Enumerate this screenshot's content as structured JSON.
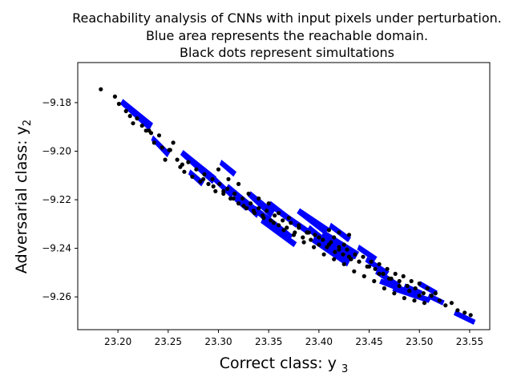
{
  "chart_data": {
    "type": "scatter",
    "title": [
      "Reachability analysis of CNNs with input pixels under perturbation.",
      "Blue area represents the reachable domain.",
      "Black dots represent simultations"
    ],
    "xlabel": "Correct class: y",
    "xlabel_sub": "3",
    "ylabel": "Adversarial class: y",
    "ylabel_sub": "2",
    "xlim": [
      23.16,
      23.57
    ],
    "ylim": [
      -9.2735,
      -9.1635
    ],
    "xticks": [
      "23.20",
      "23.25",
      "23.30",
      "23.35",
      "23.40",
      "23.45",
      "23.50",
      "23.55"
    ],
    "yticks": [
      "-9.18",
      "-9.20",
      "-9.22",
      "-9.24",
      "-9.26"
    ],
    "grid": false,
    "colors": {
      "reachable_domain": "#0000ff",
      "simulations": "#000000"
    },
    "series": [
      {
        "kind": "reachable_domain_polygons",
        "polygons": [
          [
            [
              23.205,
              -9.1785
            ],
            [
              23.235,
              -9.1885
            ],
            [
              23.231,
              -9.1915
            ],
            [
              23.202,
              -9.1805
            ]
          ],
          [
            [
              23.235,
              -9.1935
            ],
            [
              23.252,
              -9.2005
            ],
            [
              23.249,
              -9.2025
            ],
            [
              23.233,
              -9.1955
            ]
          ],
          [
            [
              23.265,
              -9.1995
            ],
            [
              23.298,
              -9.2105
            ],
            [
              23.294,
              -9.2135
            ],
            [
              23.262,
              -9.2015
            ]
          ],
          [
            [
              23.272,
              -9.2075
            ],
            [
              23.286,
              -9.2125
            ],
            [
              23.283,
              -9.2145
            ],
            [
              23.27,
              -9.2095
            ]
          ],
          [
            [
              23.292,
              -9.2085
            ],
            [
              23.315,
              -9.2175
            ],
            [
              23.313,
              -9.2195
            ],
            [
              23.29,
              -9.2105
            ]
          ],
          [
            [
              23.303,
              -9.2035
            ],
            [
              23.318,
              -9.2085
            ],
            [
              23.315,
              -9.2105
            ],
            [
              23.301,
              -9.2055
            ]
          ],
          [
            [
              23.31,
              -9.2135
            ],
            [
              23.342,
              -9.2245
            ],
            [
              23.338,
              -9.2275
            ],
            [
              23.307,
              -9.2155
            ]
          ],
          [
            [
              23.318,
              -9.2185
            ],
            [
              23.33,
              -9.2225
            ],
            [
              23.327,
              -9.2245
            ],
            [
              23.316,
              -9.2205
            ]
          ],
          [
            [
              23.332,
              -9.2165
            ],
            [
              23.356,
              -9.2245
            ],
            [
              23.352,
              -9.2275
            ],
            [
              23.329,
              -9.2185
            ]
          ],
          [
            [
              23.337,
              -9.2225
            ],
            [
              23.374,
              -9.2345
            ],
            [
              23.37,
              -9.2375
            ],
            [
              23.334,
              -9.2245
            ]
          ],
          [
            [
              23.344,
              -9.2275
            ],
            [
              23.378,
              -9.2375
            ],
            [
              23.375,
              -9.2395
            ],
            [
              23.342,
              -9.2295
            ]
          ],
          [
            [
              23.352,
              -9.2205
            ],
            [
              23.38,
              -9.2295
            ],
            [
              23.377,
              -9.2315
            ],
            [
              23.349,
              -9.2225
            ]
          ],
          [
            [
              23.364,
              -9.2245
            ],
            [
              23.392,
              -9.2325
            ],
            [
              23.389,
              -9.2345
            ],
            [
              23.361,
              -9.2265
            ]
          ],
          [
            [
              23.381,
              -9.2235
            ],
            [
              23.41,
              -9.2315
            ],
            [
              23.406,
              -9.2345
            ],
            [
              23.378,
              -9.2255
            ]
          ],
          [
            [
              23.391,
              -9.2305
            ],
            [
              23.418,
              -9.2395
            ],
            [
              23.414,
              -9.2425
            ],
            [
              23.388,
              -9.2325
            ]
          ],
          [
            [
              23.396,
              -9.2345
            ],
            [
              23.433,
              -9.2435
            ],
            [
              23.428,
              -9.2475
            ],
            [
              23.393,
              -9.2375
            ]
          ],
          [
            [
              23.405,
              -9.2325
            ],
            [
              23.44,
              -9.2415
            ],
            [
              23.436,
              -9.2445
            ],
            [
              23.402,
              -9.2355
            ]
          ],
          [
            [
              23.412,
              -9.2295
            ],
            [
              23.432,
              -9.2355
            ],
            [
              23.429,
              -9.2375
            ],
            [
              23.41,
              -9.2315
            ]
          ],
          [
            [
              23.418,
              -9.2365
            ],
            [
              23.438,
              -9.2425
            ],
            [
              23.435,
              -9.2445
            ],
            [
              23.416,
              -9.2385
            ]
          ],
          [
            [
              23.44,
              -9.2385
            ],
            [
              23.458,
              -9.2435
            ],
            [
              23.455,
              -9.2455
            ],
            [
              23.438,
              -9.2405
            ]
          ],
          [
            [
              23.448,
              -9.2435
            ],
            [
              23.47,
              -9.2495
            ],
            [
              23.467,
              -9.2515
            ],
            [
              23.446,
              -9.2455
            ]
          ],
          [
            [
              23.458,
              -9.2485
            ],
            [
              23.481,
              -9.2545
            ],
            [
              23.478,
              -9.2565
            ],
            [
              23.456,
              -9.2505
            ]
          ],
          [
            [
              23.462,
              -9.2525
            ],
            [
              23.5,
              -9.2585
            ],
            [
              23.497,
              -9.2605
            ],
            [
              23.46,
              -9.2545
            ]
          ],
          [
            [
              23.475,
              -9.2555
            ],
            [
              23.512,
              -9.2605
            ],
            [
              23.509,
              -9.2625
            ],
            [
              23.473,
              -9.2575
            ]
          ],
          [
            [
              23.486,
              -9.2545
            ],
            [
              23.503,
              -9.2575
            ],
            [
              23.501,
              -9.2595
            ],
            [
              23.484,
              -9.2565
            ]
          ],
          [
            [
              23.501,
              -9.2535
            ],
            [
              23.518,
              -9.2575
            ],
            [
              23.516,
              -9.2595
            ],
            [
              23.499,
              -9.2555
            ]
          ],
          [
            [
              23.51,
              -9.2585
            ],
            [
              23.525,
              -9.2615
            ],
            [
              23.523,
              -9.2635
            ],
            [
              23.508,
              -9.2605
            ]
          ],
          [
            [
              23.536,
              -9.2655
            ],
            [
              23.556,
              -9.2695
            ],
            [
              23.554,
              -9.2715
            ],
            [
              23.534,
              -9.2675
            ]
          ]
        ]
      },
      {
        "name": "",
        "kind": "simulations",
        "x": [
          23.183,
          23.197,
          23.201,
          23.208,
          23.212,
          23.219,
          23.224,
          23.228,
          23.233,
          23.236,
          23.241,
          23.244,
          23.247,
          23.251,
          23.255,
          23.259,
          23.262,
          23.266,
          23.27,
          23.274,
          23.278,
          23.282,
          23.286,
          23.29,
          23.294,
          23.297,
          23.301,
          23.305,
          23.309,
          23.312,
          23.316,
          23.32,
          23.324,
          23.328,
          23.332,
          23.336,
          23.34,
          23.344,
          23.348,
          23.352,
          23.356,
          23.36,
          23.364,
          23.368,
          23.372,
          23.376,
          23.38,
          23.384,
          23.388,
          23.392,
          23.396,
          23.4,
          23.404,
          23.408,
          23.412,
          23.416,
          23.42,
          23.424,
          23.428,
          23.432,
          23.436,
          23.44,
          23.444,
          23.448,
          23.452,
          23.456,
          23.46,
          23.464,
          23.468,
          23.472,
          23.476,
          23.48,
          23.484,
          23.488,
          23.492,
          23.496,
          23.5,
          23.504,
          23.508,
          23.512,
          23.516,
          23.52,
          23.526,
          23.532,
          23.538,
          23.545,
          23.551,
          23.3,
          23.31,
          23.32,
          23.33,
          23.34,
          23.35,
          23.36,
          23.37,
          23.38,
          23.39,
          23.4,
          23.41,
          23.42,
          23.43,
          23.44,
          23.45,
          23.46,
          23.47,
          23.48,
          23.49,
          23.5,
          23.285,
          23.295,
          23.305,
          23.315,
          23.325,
          23.335,
          23.345,
          23.355,
          23.365,
          23.375,
          23.385,
          23.395,
          23.405,
          23.415,
          23.425,
          23.435,
          23.445,
          23.455,
          23.465,
          23.475,
          23.485,
          23.495,
          23.505,
          23.264,
          23.252,
          23.231,
          23.215,
          23.42,
          23.41,
          23.43,
          23.425,
          23.415
        ],
        "y": [
          -9.1745,
          -9.1775,
          -9.1805,
          -9.1835,
          -9.1855,
          -9.1865,
          -9.1895,
          -9.1915,
          -9.1925,
          -9.1965,
          -9.1935,
          -9.1985,
          -9.2035,
          -9.1995,
          -9.1965,
          -9.2035,
          -9.2065,
          -9.2085,
          -9.2045,
          -9.2105,
          -9.2075,
          -9.2125,
          -9.2095,
          -9.2135,
          -9.2115,
          -9.2165,
          -9.2135,
          -9.2175,
          -9.2155,
          -9.2195,
          -9.2175,
          -9.2215,
          -9.2195,
          -9.2235,
          -9.2215,
          -9.2255,
          -9.2235,
          -9.2265,
          -9.2245,
          -9.2285,
          -9.2265,
          -9.2305,
          -9.2285,
          -9.2315,
          -9.2295,
          -9.2335,
          -9.2315,
          -9.2355,
          -9.2335,
          -9.2365,
          -9.2345,
          -9.2385,
          -9.2365,
          -9.2395,
          -9.2375,
          -9.2415,
          -9.2395,
          -9.2425,
          -9.2405,
          -9.2445,
          -9.2425,
          -9.2455,
          -9.2435,
          -9.2475,
          -9.2455,
          -9.2485,
          -9.2465,
          -9.2505,
          -9.2485,
          -9.2525,
          -9.2505,
          -9.2535,
          -9.2515,
          -9.2555,
          -9.2535,
          -9.2565,
          -9.2545,
          -9.2585,
          -9.2565,
          -9.2595,
          -9.2585,
          -9.2615,
          -9.2635,
          -9.2625,
          -9.2655,
          -9.2665,
          -9.2675,
          -9.2075,
          -9.2115,
          -9.2135,
          -9.2175,
          -9.2195,
          -9.2215,
          -9.2255,
          -9.2275,
          -9.2305,
          -9.2335,
          -9.2355,
          -9.2385,
          -9.2405,
          -9.2435,
          -9.2455,
          -9.2475,
          -9.2505,
          -9.2525,
          -9.2555,
          -9.2575,
          -9.2595,
          -9.2115,
          -9.2145,
          -9.2165,
          -9.2195,
          -9.2225,
          -9.2245,
          -9.2275,
          -9.2295,
          -9.2325,
          -9.2345,
          -9.2375,
          -9.2395,
          -9.2425,
          -9.2445,
          -9.2465,
          -9.2495,
          -9.2515,
          -9.2535,
          -9.2565,
          -9.2585,
          -9.2605,
          -9.2615,
          -9.2625,
          -9.2055,
          -9.1995,
          -9.1915,
          -9.1885,
          -9.2335,
          -9.2325,
          -9.2345,
          -9.2385,
          -9.2355
        ]
      }
    ]
  }
}
